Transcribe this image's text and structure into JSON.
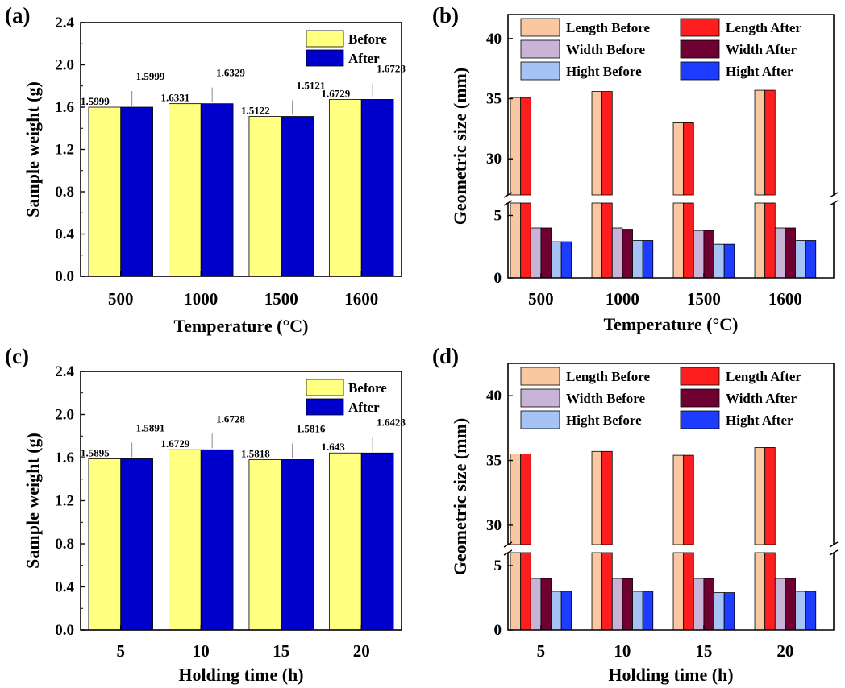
{
  "chart_data": [
    {
      "type": "bar",
      "panel": "(a)",
      "categories": [
        "500",
        "1000",
        "1500",
        "1600"
      ],
      "xlabel": "Temperature (°C)",
      "ylabel": "Sample weight (g)",
      "ylim": [
        0,
        2.4
      ],
      "yticks": [
        "0.0",
        "0.4",
        "0.8",
        "1.2",
        "1.6",
        "2.0",
        "2.4"
      ],
      "series": [
        {
          "name": "Before",
          "color": "#ffff80",
          "values": [
            1.5999,
            1.6331,
            1.5122,
            1.6729
          ],
          "labels": [
            "1.5999",
            "1.6331",
            "1.5122",
            "1.6729"
          ]
        },
        {
          "name": "After",
          "color": "#0000cc",
          "values": [
            1.5999,
            1.6329,
            1.5121,
            1.6728
          ],
          "labels": [
            "1.5999",
            "1.6329",
            "1.5121",
            "1.6728"
          ]
        }
      ],
      "legend": "top-right"
    },
    {
      "type": "bar",
      "panel": "(b)",
      "categories": [
        "500",
        "1000",
        "1500",
        "1600"
      ],
      "xlabel": "Temperature (°C)",
      "ylabel": "Geometric size (mm)",
      "broken_axis": {
        "lower": [
          0,
          6
        ],
        "upper": [
          27,
          42
        ]
      },
      "yticks_lower": [
        "0",
        "5"
      ],
      "yticks_upper": [
        "30",
        "35",
        "40"
      ],
      "series": [
        {
          "name": "Length Before",
          "color": "#fac8a0",
          "values": [
            35.1,
            35.6,
            33.0,
            35.7
          ]
        },
        {
          "name": "Length After",
          "color": "#ff1e1e",
          "values": [
            35.1,
            35.6,
            33.0,
            35.7
          ]
        },
        {
          "name": "Width  Before",
          "color": "#c8b4d7",
          "values": [
            4.0,
            4.0,
            3.8,
            4.0
          ]
        },
        {
          "name": "Width  After",
          "color": "#6e0032",
          "values": [
            4.0,
            3.9,
            3.8,
            4.0
          ]
        },
        {
          "name": "Hight  Before",
          "color": "#a5c3f5",
          "values": [
            2.9,
            3.0,
            2.7,
            3.0
          ]
        },
        {
          "name": "Hight  After",
          "color": "#1e3cff",
          "values": [
            2.9,
            3.0,
            2.7,
            3.0
          ]
        }
      ],
      "legend": "top"
    },
    {
      "type": "bar",
      "panel": "(c)",
      "categories": [
        "5",
        "10",
        "15",
        "20"
      ],
      "xlabel": "Holding time (h)",
      "ylabel": "Sample weight (g)",
      "ylim": [
        0,
        2.4
      ],
      "yticks": [
        "0.0",
        "0.4",
        "0.8",
        "1.2",
        "1.6",
        "2.0",
        "2.4"
      ],
      "series": [
        {
          "name": "Before",
          "color": "#ffff80",
          "values": [
            1.5895,
            1.6729,
            1.5818,
            1.643
          ],
          "labels": [
            "1.5895",
            "1.6729",
            "1.5818",
            "1.643"
          ]
        },
        {
          "name": "After",
          "color": "#0000cc",
          "values": [
            1.5891,
            1.6728,
            1.5816,
            1.6428
          ],
          "labels": [
            "1.5891",
            "1.6728",
            "1.5816",
            "1.6428"
          ]
        }
      ],
      "legend": "top-right"
    },
    {
      "type": "bar",
      "panel": "(d)",
      "categories": [
        "5",
        "10",
        "15",
        "20"
      ],
      "xlabel": "Holding time (h)",
      "ylabel": "Geometric size (mm)",
      "broken_axis": {
        "lower": [
          0,
          6
        ],
        "upper": [
          28.5,
          42.5
        ]
      },
      "yticks_lower": [
        "0",
        "5"
      ],
      "yticks_upper": [
        "30",
        "35",
        "40"
      ],
      "series": [
        {
          "name": "Length Before",
          "color": "#fac8a0",
          "values": [
            35.5,
            35.7,
            35.4,
            36.0
          ]
        },
        {
          "name": "Length After",
          "color": "#ff1e1e",
          "values": [
            35.5,
            35.7,
            35.4,
            36.0
          ]
        },
        {
          "name": "Width  Before",
          "color": "#c8b4d7",
          "values": [
            4.0,
            4.0,
            4.0,
            4.0
          ]
        },
        {
          "name": "Width  After",
          "color": "#6e0032",
          "values": [
            4.0,
            4.0,
            4.0,
            4.0
          ]
        },
        {
          "name": "Hight  Before",
          "color": "#a5c3f5",
          "values": [
            3.0,
            3.0,
            2.9,
            3.0
          ]
        },
        {
          "name": "Hight  After",
          "color": "#1e3cff",
          "values": [
            3.0,
            3.0,
            2.9,
            3.0
          ]
        }
      ],
      "legend": "top"
    }
  ]
}
